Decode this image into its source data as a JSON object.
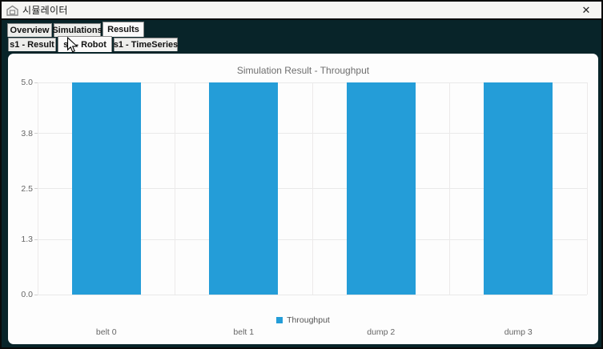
{
  "window": {
    "title": "시뮬레이터",
    "close_label": "✕"
  },
  "tabs_row1": [
    {
      "label": "Overview",
      "selected": false
    },
    {
      "label": "Simulations",
      "selected": false
    },
    {
      "label": "Results",
      "selected": true
    }
  ],
  "tabs_row2": [
    {
      "label": "s1 - Result",
      "selected": false
    },
    {
      "label": "s1 - Robot",
      "selected": true
    },
    {
      "label": "s1 - TimeSeries",
      "selected": false
    }
  ],
  "chart_data": {
    "type": "bar",
    "title": "Simulation Result - Throughput",
    "categories": [
      "belt 0",
      "belt 1",
      "dump 2",
      "dump 3"
    ],
    "series": [
      {
        "name": "Throughput",
        "values": [
          5,
          5,
          5,
          5
        ]
      }
    ],
    "xlabel": "",
    "ylabel": "",
    "ylim": [
      0,
      5
    ],
    "yticks": [
      {
        "value": 0.0,
        "label": "0.0"
      },
      {
        "value": 1.3,
        "label": "1.3"
      },
      {
        "value": 2.5,
        "label": "2.5"
      },
      {
        "value": 3.8,
        "label": "3.8"
      },
      {
        "value": 5.0,
        "label": "5.0"
      }
    ],
    "grid": true,
    "legend": {
      "position": "bottom",
      "entries": [
        "Throughput"
      ]
    },
    "bar_color": "#249dd8"
  },
  "colors": {
    "accent_blue": "#249dd8",
    "window_background": "#082429"
  }
}
